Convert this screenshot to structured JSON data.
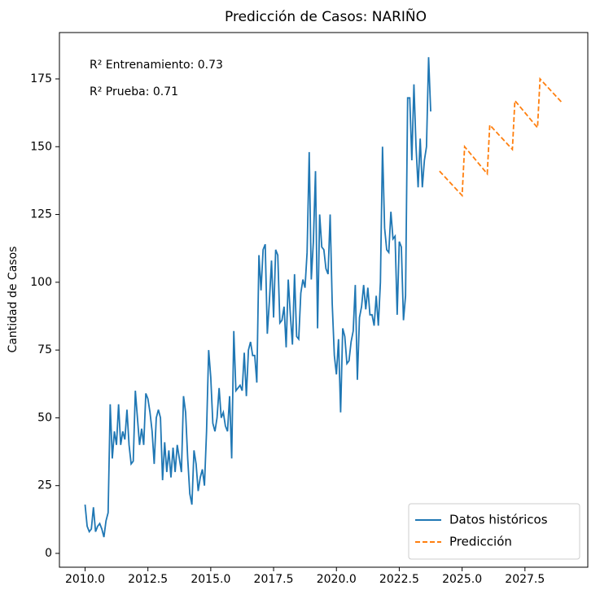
{
  "chart_data": {
    "type": "line",
    "title": "Predicción de Casos: NARIÑO",
    "ylabel": "Cantidad de Casos",
    "annotations": [
      "R² Entrenamiento: 0.73",
      "R² Prueba: 0.71"
    ],
    "xlim": [
      2008.98,
      2030.0
    ],
    "ylim": [
      -5.1,
      192.1
    ],
    "xticks": [
      {
        "value": 2010,
        "label": "2010.0"
      },
      2012.5,
      {
        "value": 2015,
        "label": "2015.0"
      },
      2017.5,
      {
        "value": 2020,
        "label": "2020.0"
      },
      2022.5,
      {
        "value": 2025,
        "label": "2025.0"
      },
      2027.5
    ],
    "yticks": [
      0,
      25,
      50,
      75,
      100,
      125,
      150,
      175
    ],
    "legend": "lower right",
    "series": [
      {
        "name": "Datos históricos",
        "color": "#1f77b4",
        "linestyle": "solid",
        "x": [
          2010.0,
          2010.083,
          2010.167,
          2010.25,
          2010.333,
          2010.417,
          2010.5,
          2010.583,
          2010.667,
          2010.75,
          2010.833,
          2010.917,
          2011.0,
          2011.083,
          2011.167,
          2011.25,
          2011.333,
          2011.417,
          2011.5,
          2011.583,
          2011.667,
          2011.75,
          2011.833,
          2011.917,
          2012.0,
          2012.083,
          2012.167,
          2012.25,
          2012.333,
          2012.417,
          2012.5,
          2012.583,
          2012.667,
          2012.75,
          2012.833,
          2012.917,
          2013.0,
          2013.083,
          2013.167,
          2013.25,
          2013.333,
          2013.417,
          2013.5,
          2013.583,
          2013.667,
          2013.75,
          2013.833,
          2013.917,
          2014.0,
          2014.083,
          2014.167,
          2014.25,
          2014.333,
          2014.417,
          2014.5,
          2014.583,
          2014.667,
          2014.75,
          2014.833,
          2014.917,
          2015.0,
          2015.083,
          2015.167,
          2015.25,
          2015.333,
          2015.417,
          2015.5,
          2015.583,
          2015.667,
          2015.75,
          2015.833,
          2015.917,
          2016.0,
          2016.083,
          2016.167,
          2016.25,
          2016.333,
          2016.417,
          2016.5,
          2016.583,
          2016.667,
          2016.75,
          2016.833,
          2016.917,
          2017.0,
          2017.083,
          2017.167,
          2017.25,
          2017.333,
          2017.417,
          2017.5,
          2017.583,
          2017.667,
          2017.75,
          2017.833,
          2017.917,
          2018.0,
          2018.083,
          2018.167,
          2018.25,
          2018.333,
          2018.417,
          2018.5,
          2018.583,
          2018.667,
          2018.75,
          2018.833,
          2018.917,
          2019.0,
          2019.083,
          2019.167,
          2019.25,
          2019.333,
          2019.417,
          2019.5,
          2019.583,
          2019.667,
          2019.75,
          2019.833,
          2019.917,
          2020.0,
          2020.083,
          2020.167,
          2020.25,
          2020.333,
          2020.417,
          2020.5,
          2020.583,
          2020.667,
          2020.75,
          2020.833,
          2020.917,
          2021.0,
          2021.083,
          2021.167,
          2021.25,
          2021.333,
          2021.417,
          2021.5,
          2021.583,
          2021.667,
          2021.75,
          2021.833,
          2021.917,
          2022.0,
          2022.083,
          2022.167,
          2022.25,
          2022.333,
          2022.417,
          2022.5,
          2022.583,
          2022.667,
          2022.75,
          2022.833,
          2022.917,
          2023.0,
          2023.083,
          2023.167,
          2023.25,
          2023.333,
          2023.417,
          2023.5,
          2023.583,
          2023.667,
          2023.75
        ],
        "values": [
          18,
          10,
          8,
          9,
          17,
          8,
          10,
          11,
          9,
          6,
          12,
          15,
          55,
          35,
          45,
          40,
          55,
          40,
          45,
          42,
          53,
          40,
          33,
          34,
          60,
          50,
          40,
          46,
          40,
          59,
          57,
          52,
          45,
          33,
          50,
          53,
          50,
          27,
          41,
          30,
          38,
          28,
          39,
          30,
          40,
          35,
          30,
          58,
          52,
          35,
          22,
          18,
          38,
          33,
          23,
          28,
          31,
          25,
          45,
          75,
          65,
          48,
          45,
          50,
          61,
          50,
          52,
          47,
          45,
          58,
          35,
          82,
          60,
          61,
          62,
          60,
          74,
          58,
          75,
          78,
          73,
          73,
          63,
          110,
          97,
          112,
          114,
          81,
          93,
          108,
          87,
          112,
          110,
          85,
          86,
          91,
          76,
          101,
          88,
          77,
          103,
          80,
          79,
          96,
          101,
          98,
          111,
          148,
          101,
          115,
          141,
          83,
          125,
          113,
          112,
          105,
          103,
          125,
          92,
          73,
          66,
          79,
          52,
          83,
          80,
          70,
          71,
          78,
          82,
          99,
          64,
          87,
          91,
          99,
          90,
          98,
          88,
          88,
          84,
          95,
          84,
          100,
          150,
          120,
          112,
          111,
          126,
          116,
          117,
          88,
          115,
          113,
          86,
          95,
          168,
          168,
          145,
          173,
          150,
          135,
          153,
          135,
          145,
          150,
          183,
          163
        ]
      },
      {
        "name": "Predicción",
        "color": "#ff7f0e",
        "linestyle": "dashed",
        "x": [
          2024.1,
          2025.0,
          2025.1,
          2026.0,
          2026.1,
          2027.0,
          2027.1,
          2028.0,
          2028.1,
          2029.0
        ],
        "values": [
          141,
          132,
          150,
          140,
          158,
          149,
          167,
          157,
          175,
          166
        ]
      }
    ]
  }
}
